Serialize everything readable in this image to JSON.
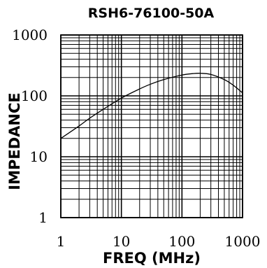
{
  "chart_data": {
    "type": "line",
    "title": "RSH6-76100-50A",
    "xlabel": "FREQ (MHz)",
    "ylabel": "IMPEDANCE",
    "xscale": "log",
    "yscale": "log",
    "xlim": [
      1,
      1000
    ],
    "ylim": [
      1,
      1000
    ],
    "x_ticks": [
      "1",
      "10",
      "100",
      "1000"
    ],
    "y_ticks": [
      "1",
      "10",
      "100",
      "1000"
    ],
    "grid": true,
    "series": [
      {
        "x": [
          1,
          2,
          3,
          5,
          10,
          20,
          30,
          50,
          100,
          150,
          200,
          300,
          500,
          700,
          1000
        ],
        "y": [
          20,
          32,
          43,
          60,
          92,
          130,
          155,
          185,
          220,
          232,
          235,
          225,
          185,
          150,
          112
        ]
      }
    ],
    "colors": {
      "line": "#000000",
      "grid": "#000000",
      "background": "#ffffff"
    }
  }
}
